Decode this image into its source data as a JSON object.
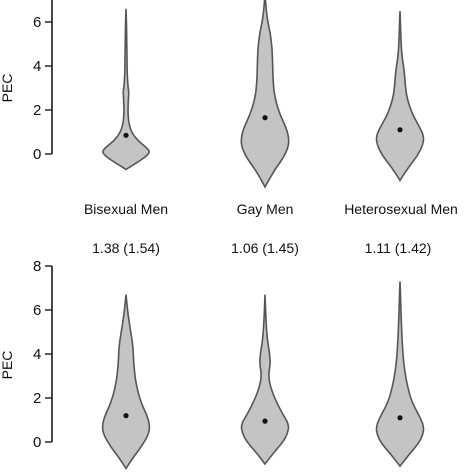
{
  "chart_data": [
    {
      "type": "violin",
      "ylabel": "PEC",
      "ylim": [
        0,
        7
      ],
      "yticks": [
        "0",
        "2",
        "4",
        "6"
      ],
      "categories": [
        "Bisexual Men",
        "Gay Men",
        "Heterosexual Men"
      ],
      "medians": [
        0.85,
        1.65,
        1.1
      ],
      "violins": [
        {
          "category": "Bisexual Men",
          "min": -0.7,
          "max": 6.6,
          "profile": [
            [
              -0.7,
              0.0
            ],
            [
              -0.4,
              0.45
            ],
            [
              -0.1,
              0.85
            ],
            [
              0.1,
              1.0
            ],
            [
              0.3,
              0.85
            ],
            [
              0.6,
              0.5
            ],
            [
              1.0,
              0.22
            ],
            [
              1.5,
              0.1
            ],
            [
              2.0,
              0.08
            ],
            [
              2.5,
              0.1
            ],
            [
              2.8,
              0.12
            ],
            [
              3.1,
              0.08
            ],
            [
              3.6,
              0.05
            ],
            [
              4.5,
              0.04
            ],
            [
              5.5,
              0.03
            ],
            [
              6.6,
              0.0
            ]
          ]
        },
        {
          "category": "Gay Men",
          "min": -1.5,
          "max": 7.2,
          "profile": [
            [
              -1.5,
              0.0
            ],
            [
              -0.8,
              0.35
            ],
            [
              -0.2,
              0.75
            ],
            [
              0.3,
              0.97
            ],
            [
              0.7,
              1.0
            ],
            [
              1.2,
              0.88
            ],
            [
              1.8,
              0.62
            ],
            [
              2.5,
              0.42
            ],
            [
              3.2,
              0.34
            ],
            [
              4.0,
              0.32
            ],
            [
              4.8,
              0.3
            ],
            [
              5.5,
              0.22
            ],
            [
              6.2,
              0.08
            ],
            [
              7.2,
              0.0
            ]
          ]
        },
        {
          "category": "Heterosexual Men",
          "min": -1.2,
          "max": 6.5,
          "profile": [
            [
              -1.2,
              0.0
            ],
            [
              -0.6,
              0.35
            ],
            [
              -0.1,
              0.72
            ],
            [
              0.4,
              0.95
            ],
            [
              0.8,
              1.0
            ],
            [
              1.3,
              0.78
            ],
            [
              1.8,
              0.52
            ],
            [
              2.5,
              0.3
            ],
            [
              3.1,
              0.22
            ],
            [
              3.8,
              0.18
            ],
            [
              4.5,
              0.07
            ],
            [
              5.5,
              0.03
            ],
            [
              6.5,
              0.0
            ]
          ]
        }
      ]
    },
    {
      "type": "violin",
      "ylabel": "PEC",
      "ylim": [
        0,
        8
      ],
      "yticks": [
        "0",
        "2",
        "4",
        "6",
        "8"
      ],
      "categories": [
        "Bisexual Men",
        "Gay Men",
        "Heterosexual Men"
      ],
      "medians": [
        1.2,
        0.95,
        1.1
      ],
      "violins": [
        {
          "category": "Bisexual Men",
          "min": -1.2,
          "max": 6.7,
          "profile": [
            [
              -1.2,
              0.0
            ],
            [
              -0.7,
              0.3
            ],
            [
              -0.2,
              0.65
            ],
            [
              0.3,
              0.92
            ],
            [
              0.7,
              1.0
            ],
            [
              1.2,
              0.88
            ],
            [
              1.8,
              0.62
            ],
            [
              2.6,
              0.42
            ],
            [
              3.5,
              0.32
            ],
            [
              4.3,
              0.3
            ],
            [
              5.0,
              0.2
            ],
            [
              5.8,
              0.08
            ],
            [
              6.7,
              0.0
            ]
          ]
        },
        {
          "category": "Gay Men",
          "min": -1.0,
          "max": 6.7,
          "profile": [
            [
              -1.0,
              0.0
            ],
            [
              -0.5,
              0.35
            ],
            [
              0.0,
              0.75
            ],
            [
              0.4,
              0.95
            ],
            [
              0.8,
              1.0
            ],
            [
              1.3,
              0.72
            ],
            [
              2.0,
              0.4
            ],
            [
              2.6,
              0.2
            ],
            [
              3.1,
              0.15
            ],
            [
              3.5,
              0.22
            ],
            [
              4.0,
              0.2
            ],
            [
              4.6,
              0.1
            ],
            [
              5.5,
              0.04
            ],
            [
              6.7,
              0.0
            ]
          ]
        },
        {
          "category": "Heterosexual Men",
          "min": -1.1,
          "max": 7.3,
          "profile": [
            [
              -1.1,
              0.0
            ],
            [
              -0.6,
              0.35
            ],
            [
              -0.1,
              0.75
            ],
            [
              0.3,
              0.95
            ],
            [
              0.7,
              1.0
            ],
            [
              1.2,
              0.8
            ],
            [
              1.8,
              0.5
            ],
            [
              2.5,
              0.32
            ],
            [
              3.2,
              0.2
            ],
            [
              4.0,
              0.12
            ],
            [
              5.0,
              0.07
            ],
            [
              6.0,
              0.04
            ],
            [
              7.3,
              0.0
            ]
          ]
        }
      ]
    }
  ],
  "category_labels": [
    "Bisexual Men",
    "Gay Men",
    "Heterosexual Men"
  ],
  "group_stats": [
    "1.38 (1.54)",
    "1.06 (1.45)",
    "1.11 (1.42)"
  ]
}
